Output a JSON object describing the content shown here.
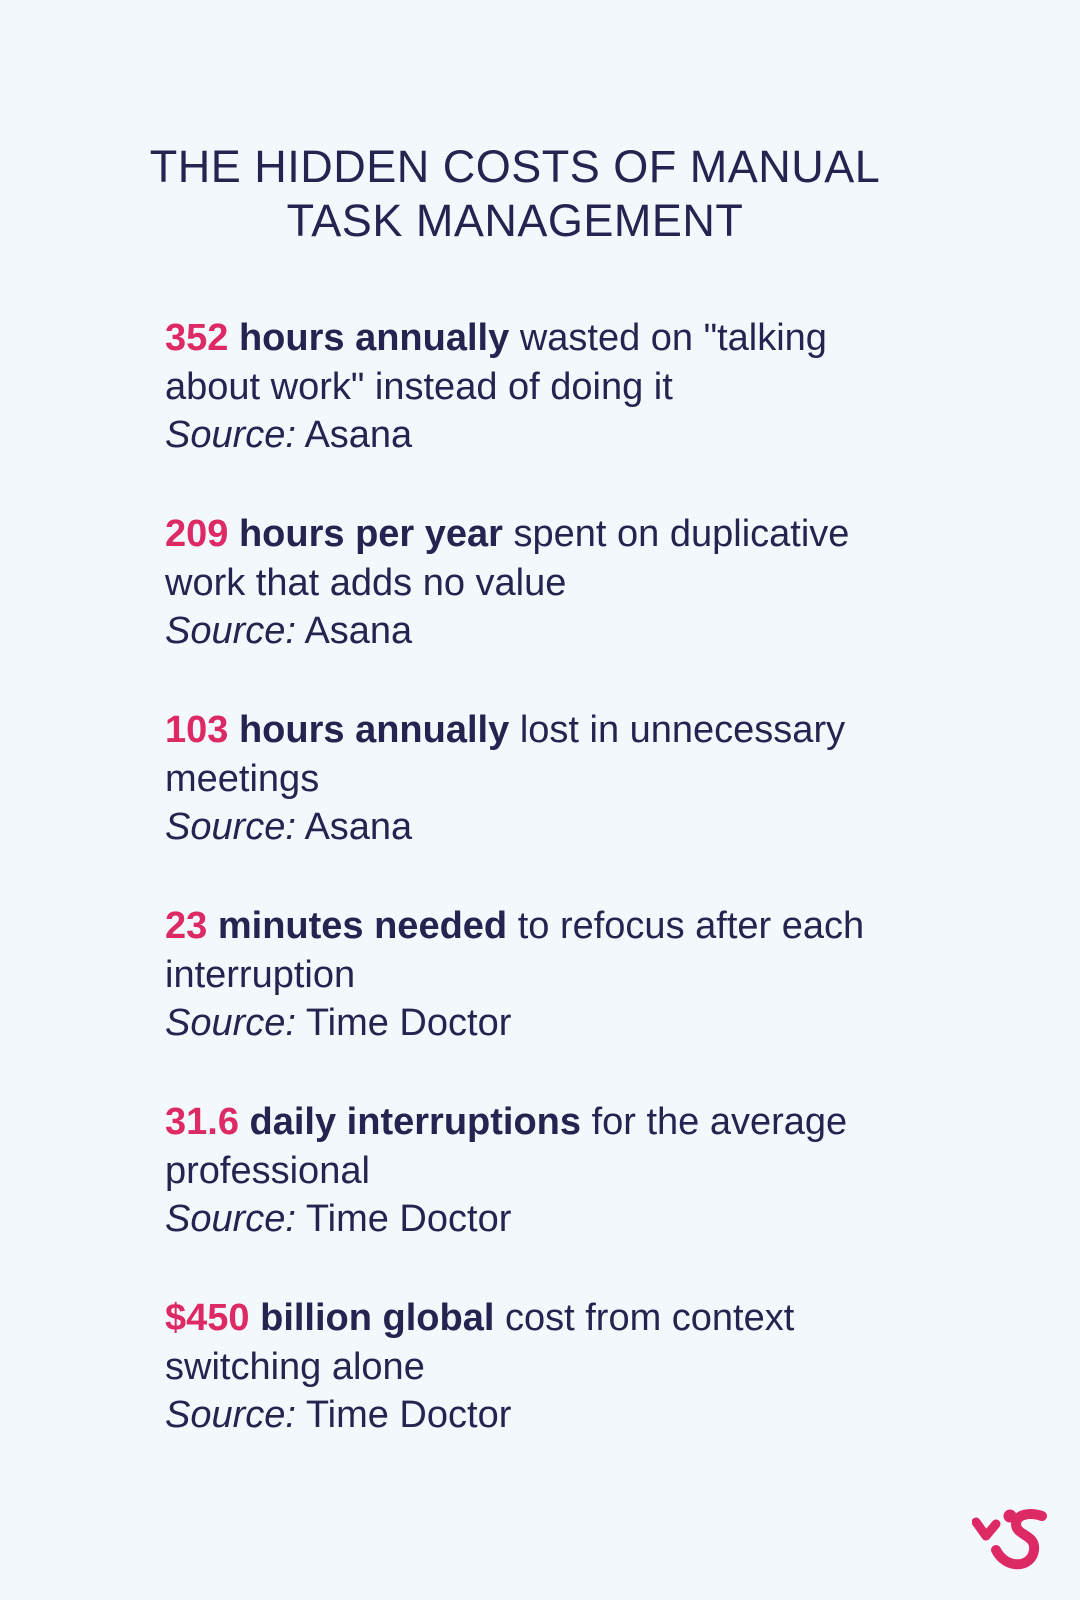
{
  "title": {
    "line1": "THE HIDDEN COSTS OF MANUAL",
    "line2": "TASK MANAGEMENT"
  },
  "stats": [
    {
      "number": "352",
      "bold": "hours annually",
      "rest": "wasted on \"talking about work\" instead of doing it",
      "source_label": "Source:",
      "source": "Asana"
    },
    {
      "number": "209",
      "bold": "hours per year",
      "rest": "spent on duplicative work that adds no value",
      "source_label": "Source:",
      "source": "Asana"
    },
    {
      "number": "103",
      "bold": "hours annually",
      "rest": "lost in unnecessary meetings",
      "source_label": "Source:",
      "source": "Asana"
    },
    {
      "number": "23",
      "bold": "minutes needed",
      "rest": "to refocus after each interruption",
      "source_label": "Source:",
      "source": "Time Doctor"
    },
    {
      "number": "31.6",
      "bold": "daily interruptions",
      "rest": "for the average professional",
      "source_label": "Source:",
      "source": "Time Doctor"
    },
    {
      "number": "$450",
      "bold": "billion global",
      "rest": "cost from context switching alone",
      "source_label": "Source:",
      "source": "Time Doctor"
    }
  ],
  "logo": {
    "icon": "brand-logo-icon",
    "color": "#dd2a64"
  },
  "colors": {
    "accent": "#dd2a64",
    "text": "#25234f",
    "background": "#f3f8fc"
  }
}
